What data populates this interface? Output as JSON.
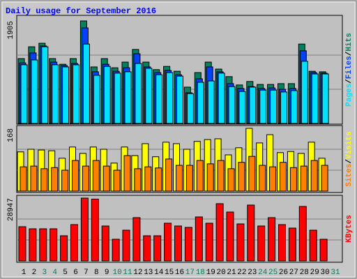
{
  "chart_data": [
    {
      "type": "bar",
      "title": "Daily usage for September 2016",
      "ylim": [
        0,
        1905
      ],
      "yticks": [
        1905
      ],
      "legend_separator": "/",
      "series": [
        {
          "name": "Hits",
          "color": "#00805c",
          "values": [
            1205,
            1425,
            1490,
            1205,
            1100,
            1205,
            1905,
            1050,
            1205,
            1035,
            1140,
            1375,
            1140,
            1000,
            1060,
            970,
            675,
            945,
            1140,
            1010,
            870,
            715,
            780,
            725,
            725,
            740,
            740,
            1475,
            970,
            960,
            null
          ]
        },
        {
          "name": "Files",
          "color": "#0040ff",
          "values": [
            1125,
            1310,
            1440,
            1140,
            1075,
            1115,
            1775,
            960,
            1100,
            970,
            1035,
            1295,
            1050,
            945,
            985,
            905,
            570,
            830,
            1050,
            960,
            740,
            650,
            685,
            650,
            660,
            635,
            650,
            1350,
            945,
            935,
            null
          ]
        },
        {
          "name": "Pages",
          "color": "#00e0ff",
          "values": [
            1090,
            1180,
            1425,
            1090,
            1050,
            1090,
            1475,
            895,
            1060,
            935,
            960,
            1115,
            1025,
            905,
            945,
            880,
            555,
            765,
            790,
            935,
            685,
            595,
            675,
            620,
            620,
            585,
            610,
            1155,
            920,
            920,
            null
          ]
        }
      ]
    },
    {
      "type": "bar",
      "ylim": [
        0,
        168
      ],
      "yticks": [
        168
      ],
      "legend_separator": "/",
      "series": [
        {
          "name": "Visits",
          "color": "#ffff00",
          "values": [
            105,
            112,
            110,
            108,
            88,
            118,
            101,
            118,
            112,
            75,
            118,
            95,
            127,
            92,
            131,
            127,
            112,
            133,
            138,
            140,
            97,
            116,
            168,
            129,
            151,
            103,
            106,
            101,
            131,
            88,
            null
          ]
        },
        {
          "name": "Sites",
          "color": "#ff8000",
          "values": [
            65,
            67,
            60,
            63,
            56,
            82,
            67,
            82,
            67,
            56,
            95,
            60,
            65,
            62,
            86,
            69,
            69,
            82,
            73,
            82,
            60,
            77,
            93,
            69,
            65,
            77,
            63,
            67,
            82,
            69,
            null
          ]
        }
      ]
    },
    {
      "type": "bar",
      "ylim": [
        0,
        28947
      ],
      "yticks": [
        28947
      ],
      "categories": [
        "1",
        "2",
        "3",
        "4",
        "5",
        "6",
        "7",
        "8",
        "9",
        "10",
        "11",
        "12",
        "13",
        "14",
        "15",
        "16",
        "17",
        "18",
        "19",
        "20",
        "21",
        "22",
        "23",
        "24",
        "25",
        "26",
        "27",
        "28",
        "29",
        "30",
        "31"
      ],
      "category_colors": [
        "#000000",
        "#000000",
        "#00805c",
        "#00805c",
        "#000000",
        "#000000",
        "#000000",
        "#000000",
        "#000000",
        "#00805c",
        "#00805c",
        "#000000",
        "#000000",
        "#000000",
        "#000000",
        "#000000",
        "#00805c",
        "#00805c",
        "#000000",
        "#000000",
        "#000000",
        "#000000",
        "#000000",
        "#00805c",
        "#00805c",
        "#000000",
        "#000000",
        "#000000",
        "#000000",
        "#000000",
        "#00805c"
      ],
      "series": [
        {
          "name": "KBytes",
          "color": "#ff0000",
          "values": [
            15760,
            14795,
            14795,
            14795,
            11580,
            16725,
            28947,
            28500,
            16080,
            9970,
            14150,
            19940,
            11580,
            11580,
            17370,
            16080,
            15440,
            20260,
            17370,
            26375,
            22515,
            17050,
            25730,
            16080,
            19940,
            16725,
            15115,
            25090,
            14150,
            9970,
            null
          ]
        }
      ]
    }
  ]
}
